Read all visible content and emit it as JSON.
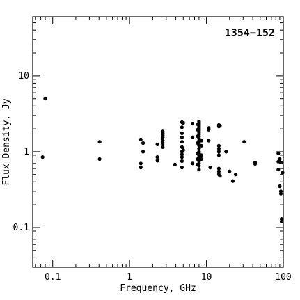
{
  "chart_data": {
    "type": "scatter",
    "title": "1354−152",
    "xlabel": "Frequency, GHz",
    "ylabel": "Flux Density, Jy",
    "x_scale": "log",
    "y_scale": "log",
    "xlim": [
      0.055,
      100
    ],
    "ylim": [
      0.03,
      60
    ],
    "x_ticks": [
      {
        "value": 0.1,
        "label": "0.1"
      },
      {
        "value": 1,
        "label": "1"
      },
      {
        "value": 10,
        "label": "10"
      },
      {
        "value": 100,
        "label": "100"
      }
    ],
    "y_ticks": [
      {
        "value": 0.1,
        "label": "0.1"
      },
      {
        "value": 1,
        "label": "1"
      },
      {
        "value": 10,
        "label": "10"
      }
    ],
    "grid": false,
    "legend": "none",
    "points": [
      [
        0.074,
        0.85
      ],
      [
        0.08,
        5.0
      ],
      [
        0.408,
        1.35
      ],
      [
        0.408,
        0.8
      ],
      [
        1.4,
        1.45
      ],
      [
        1.4,
        0.7
      ],
      [
        1.4,
        0.62
      ],
      [
        1.5,
        1.3
      ],
      [
        1.5,
        1.0
      ],
      [
        2.3,
        1.25
      ],
      [
        2.3,
        0.85
      ],
      [
        2.3,
        0.76
      ],
      [
        2.7,
        1.85
      ],
      [
        2.7,
        1.75
      ],
      [
        2.7,
        1.65
      ],
      [
        2.7,
        1.55
      ],
      [
        2.7,
        1.4
      ],
      [
        2.7,
        1.3
      ],
      [
        2.7,
        1.15
      ],
      [
        3.9,
        0.68
      ],
      [
        4.8,
        2.45
      ],
      [
        4.8,
        2.1
      ],
      [
        4.8,
        1.75
      ],
      [
        4.8,
        1.55
      ],
      [
        4.8,
        1.35
      ],
      [
        4.8,
        1.15
      ],
      [
        4.8,
        1.0
      ],
      [
        4.8,
        0.92
      ],
      [
        4.8,
        0.85
      ],
      [
        4.8,
        0.75
      ],
      [
        4.8,
        0.62
      ],
      [
        5.0,
        2.4
      ],
      [
        5.0,
        1.05
      ],
      [
        6.6,
        2.35
      ],
      [
        6.6,
        1.55
      ],
      [
        6.6,
        0.7
      ],
      [
        7.7,
        2.3
      ],
      [
        7.7,
        1.95
      ],
      [
        7.7,
        1.6
      ],
      [
        7.7,
        1.3
      ],
      [
        7.7,
        0.95
      ],
      [
        7.7,
        0.8
      ],
      [
        7.7,
        0.68
      ],
      [
        8.0,
        2.5
      ],
      [
        8.0,
        2.4
      ],
      [
        8.0,
        2.3
      ],
      [
        8.0,
        2.2
      ],
      [
        8.0,
        2.1
      ],
      [
        8.0,
        2.0
      ],
      [
        8.0,
        1.9
      ],
      [
        8.0,
        1.8
      ],
      [
        8.0,
        1.7
      ],
      [
        8.0,
        1.6
      ],
      [
        8.0,
        1.5
      ],
      [
        8.0,
        1.4
      ],
      [
        8.0,
        1.3
      ],
      [
        8.0,
        1.2
      ],
      [
        8.0,
        1.1
      ],
      [
        8.0,
        1.0
      ],
      [
        8.0,
        0.95
      ],
      [
        8.0,
        0.9
      ],
      [
        8.0,
        0.85
      ],
      [
        8.0,
        0.8
      ],
      [
        8.0,
        0.75
      ],
      [
        8.0,
        0.7
      ],
      [
        8.0,
        0.65
      ],
      [
        8.0,
        0.58
      ],
      [
        8.6,
        1.4
      ],
      [
        8.6,
        1.2
      ],
      [
        8.6,
        0.9
      ],
      [
        8.6,
        0.8
      ],
      [
        10.7,
        2.05
      ],
      [
        10.7,
        1.95
      ],
      [
        10.7,
        1.4
      ],
      [
        11.2,
        0.62
      ],
      [
        14.5,
        2.25
      ],
      [
        14.5,
        2.15
      ],
      [
        14.5,
        1.2
      ],
      [
        14.5,
        1.1
      ],
      [
        14.5,
        1.0
      ],
      [
        14.5,
        0.9
      ],
      [
        14.5,
        0.6
      ],
      [
        14.5,
        0.55
      ],
      [
        14.5,
        0.5
      ],
      [
        15.0,
        2.2
      ],
      [
        15.0,
        0.48
      ],
      [
        18.0,
        1.0
      ],
      [
        20.0,
        0.55
      ],
      [
        22.0,
        0.41
      ],
      [
        24.0,
        0.5
      ],
      [
        31.0,
        1.35
      ],
      [
        43.0,
        0.72
      ],
      [
        43.0,
        0.69
      ],
      [
        86.0,
        0.95
      ],
      [
        86.0,
        0.74
      ],
      [
        86.0,
        0.58
      ],
      [
        90.0,
        0.8
      ],
      [
        90.0,
        0.35
      ],
      [
        93.0,
        0.72
      ],
      [
        93.0,
        0.3
      ],
      [
        93.0,
        0.28
      ],
      [
        95.0,
        0.13
      ],
      [
        95.0,
        0.12
      ],
      [
        98.0,
        0.53
      ]
    ]
  }
}
